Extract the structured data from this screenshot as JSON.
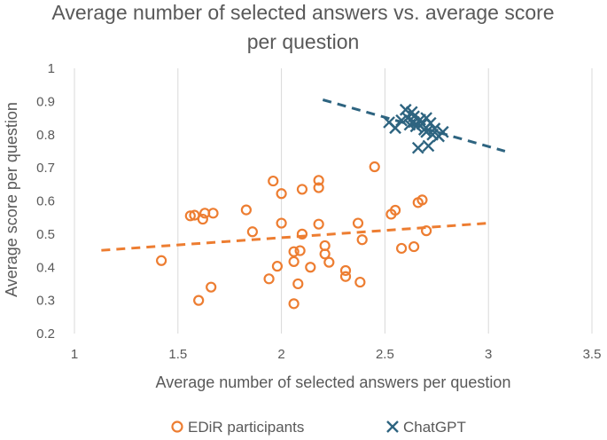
{
  "chart_data": {
    "type": "scatter",
    "title_lines": [
      "Average number of selected answers vs. average score",
      "per question"
    ],
    "xlabel": "Average number of selected answers per question",
    "ylabel": "Average score per question",
    "xlim": [
      1,
      3.5
    ],
    "ylim": [
      0.2,
      1
    ],
    "xticks": [
      1,
      1.5,
      2,
      2.5,
      3,
      3.5
    ],
    "xtick_labels": [
      "1",
      "1.5",
      "2",
      "2.5",
      "3",
      "3.5"
    ],
    "yticks": [
      0.2,
      0.3,
      0.4,
      0.5,
      0.6,
      0.7,
      0.8,
      0.9,
      1
    ],
    "ytick_labels": [
      "0.2",
      "0.3",
      "0.4",
      "0.5",
      "0.6",
      "0.7",
      "0.8",
      "0.9",
      "1"
    ],
    "grid": "vertical",
    "legend_position": "bottom",
    "series": [
      {
        "name": "EDiR participants",
        "marker": "circle",
        "color": "#ED7D31",
        "points": [
          [
            1.42,
            0.42
          ],
          [
            1.56,
            0.555
          ],
          [
            1.58,
            0.557
          ],
          [
            1.6,
            0.3
          ],
          [
            1.62,
            0.545
          ],
          [
            1.63,
            0.563
          ],
          [
            1.66,
            0.34
          ],
          [
            1.67,
            0.563
          ],
          [
            1.83,
            0.573
          ],
          [
            1.86,
            0.507
          ],
          [
            1.94,
            0.365
          ],
          [
            1.96,
            0.66
          ],
          [
            1.98,
            0.403
          ],
          [
            2.0,
            0.622
          ],
          [
            2.0,
            0.533
          ],
          [
            2.06,
            0.29
          ],
          [
            2.06,
            0.447
          ],
          [
            2.06,
            0.417
          ],
          [
            2.08,
            0.35
          ],
          [
            2.09,
            0.45
          ],
          [
            2.1,
            0.635
          ],
          [
            2.1,
            0.5
          ],
          [
            2.14,
            0.4
          ],
          [
            2.18,
            0.662
          ],
          [
            2.18,
            0.64
          ],
          [
            2.18,
            0.53
          ],
          [
            2.21,
            0.465
          ],
          [
            2.21,
            0.44
          ],
          [
            2.23,
            0.415
          ],
          [
            2.31,
            0.39
          ],
          [
            2.31,
            0.372
          ],
          [
            2.37,
            0.533
          ],
          [
            2.38,
            0.355
          ],
          [
            2.39,
            0.483
          ],
          [
            2.45,
            0.703
          ],
          [
            2.53,
            0.56
          ],
          [
            2.55,
            0.572
          ],
          [
            2.58,
            0.457
          ],
          [
            2.64,
            0.462
          ],
          [
            2.66,
            0.595
          ],
          [
            2.68,
            0.603
          ],
          [
            2.7,
            0.51
          ]
        ],
        "trendline": {
          "x1": 1.13,
          "y1": 0.451,
          "x2": 3.0,
          "y2": 0.533
        }
      },
      {
        "name": "ChatGPT",
        "marker": "x",
        "color": "#2E6480",
        "points": [
          [
            2.52,
            0.837
          ],
          [
            2.55,
            0.82
          ],
          [
            2.58,
            0.843
          ],
          [
            2.6,
            0.875
          ],
          [
            2.61,
            0.85
          ],
          [
            2.62,
            0.83
          ],
          [
            2.63,
            0.868
          ],
          [
            2.64,
            0.855
          ],
          [
            2.64,
            0.838
          ],
          [
            2.65,
            0.825
          ],
          [
            2.66,
            0.76
          ],
          [
            2.67,
            0.845
          ],
          [
            2.68,
            0.832
          ],
          [
            2.69,
            0.815
          ],
          [
            2.7,
            0.85
          ],
          [
            2.7,
            0.808
          ],
          [
            2.71,
            0.766
          ],
          [
            2.72,
            0.835
          ],
          [
            2.73,
            0.8
          ],
          [
            2.74,
            0.818
          ],
          [
            2.76,
            0.795
          ],
          [
            2.78,
            0.808
          ]
        ],
        "trendline": {
          "x1": 2.2,
          "y1": 0.905,
          "x2": 3.08,
          "y2": 0.75
        }
      }
    ]
  }
}
